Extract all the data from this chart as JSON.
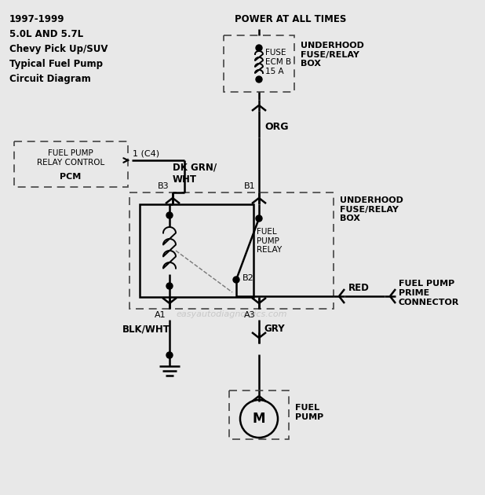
{
  "title_lines": [
    "1997-1999",
    "5.0L AND 5.7L",
    "Chevy Pick Up/SUV",
    "Typical Fuel Pump",
    "Circuit Diagram"
  ],
  "bg_color": "#e8e8e8",
  "watermark": "easyautodiagnostics.com",
  "fuse_label": "FUSE\nECM B\n15 A",
  "underhood_label1": "UNDERHOOD\nFUSE/RELAY\nBOX",
  "underhood_label2": "UNDERHOOD\nFUSE/RELAY\nBOX",
  "pcm_label": "FUEL PUMP\nRELAY CONTROL",
  "pcm_sub": "PCM",
  "c4_label": "1 (C4)",
  "org_label": "ORG",
  "dkgrn_label": "DK GRN/\nWHT",
  "relay_label": "FUEL\nPUMP\nRELAY",
  "b1": "B1",
  "b2": "B2",
  "b3": "B3",
  "a1": "A1",
  "a3": "A3",
  "red_label": "RED",
  "fp_prime": "FUEL PUMP\nPRIME\nCONNECTOR",
  "blkwht_label": "BLK/WHT",
  "gry_label": "GRY",
  "fp_label": "FUEL\nPUMP",
  "power_label": "POWER AT ALL TIMES"
}
